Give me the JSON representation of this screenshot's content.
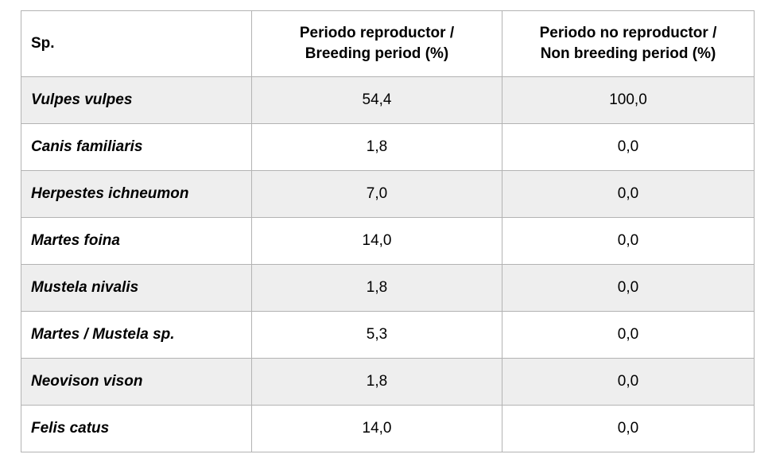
{
  "colors": {
    "background": "#ffffff",
    "row_alt": "#eeeeee",
    "border": "#b3b3b3",
    "text": "#000000"
  },
  "table": {
    "columns": [
      {
        "label": "Sp."
      },
      {
        "label": "Periodo reproductor /\nBreeding period (%)"
      },
      {
        "label": "Periodo no reproductor /\nNon breeding period (%)"
      }
    ],
    "rows": [
      {
        "species": "Vulpes vulpes",
        "breeding": "54,4",
        "non_breeding": "100,0"
      },
      {
        "species": "Canis familiaris",
        "breeding": "1,8",
        "non_breeding": "0,0"
      },
      {
        "species": "Herpestes ichneumon",
        "breeding": "7,0",
        "non_breeding": "0,0"
      },
      {
        "species": "Martes foina",
        "breeding": "14,0",
        "non_breeding": "0,0"
      },
      {
        "species": "Mustela nivalis",
        "breeding": "1,8",
        "non_breeding": "0,0"
      },
      {
        "species": "Martes / Mustela sp.",
        "breeding": "5,3",
        "non_breeding": "0,0"
      },
      {
        "species": "Neovison vison",
        "breeding": "1,8",
        "non_breeding": "0,0"
      },
      {
        "species": "Felis catus",
        "breeding": "14,0",
        "non_breeding": "0,0"
      }
    ]
  },
  "chart_data": {
    "type": "table",
    "title": "",
    "columns": [
      "Sp.",
      "Periodo reproductor / Breeding period (%)",
      "Periodo no reproductor / Non breeding period (%)"
    ],
    "rows": [
      [
        "Vulpes vulpes",
        54.4,
        100.0
      ],
      [
        "Canis familiaris",
        1.8,
        0.0
      ],
      [
        "Herpestes ichneumon",
        7.0,
        0.0
      ],
      [
        "Martes foina",
        14.0,
        0.0
      ],
      [
        "Mustela nivalis",
        1.8,
        0.0
      ],
      [
        "Martes / Mustela sp.",
        5.3,
        0.0
      ],
      [
        "Neovison vison",
        1.8,
        0.0
      ],
      [
        "Felis catus",
        14.0,
        0.0
      ]
    ],
    "value_format": "decimal-comma",
    "notes": "alternating gray/white row shading starting gray at first data row"
  }
}
